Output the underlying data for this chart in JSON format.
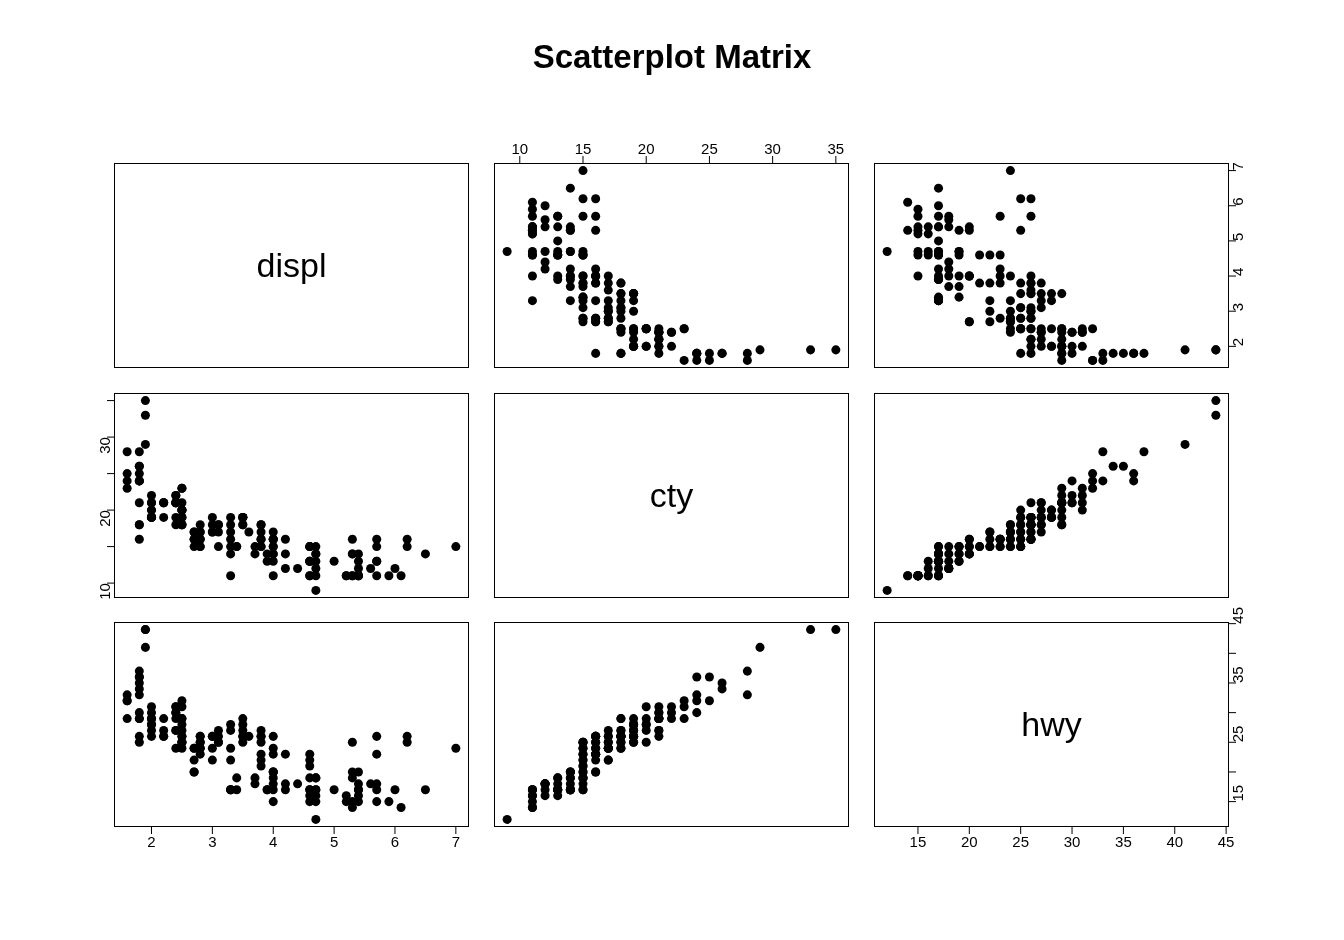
{
  "chart_data": [
    {
      "type": "other",
      "title": "Scatterplot Matrix"
    },
    {
      "type": "other",
      "title": "displ"
    },
    {
      "type": "scatter",
      "color": "#000000",
      "marker": "circle",
      "tick_labels": "x",
      "xlim": [
        7.96,
        36.04
      ],
      "xticks": [
        10,
        15,
        20,
        25,
        30,
        35
      ],
      "ylim": [
        1.384,
        7.216
      ],
      "x": [
        28,
        24,
        25,
        23,
        18,
        21,
        18,
        16,
        26,
        25,
        24,
        24,
        24,
        26,
        28,
        33,
        35,
        29,
        20,
        21,
        20,
        19,
        21,
        19,
        19,
        22,
        19,
        21,
        19,
        21,
        21,
        19,
        22,
        18,
        21,
        21,
        21,
        21,
        22,
        18,
        23,
        23,
        18,
        18,
        20,
        20,
        19,
        19,
        21,
        20,
        20,
        17,
        16,
        15,
        16,
        17,
        16,
        18,
        15,
        17,
        15,
        16,
        17,
        17,
        17,
        18,
        19,
        18,
        17,
        15,
        18,
        16,
        17,
        11,
        19,
        14,
        15,
        18,
        15,
        15,
        18,
        19,
        19,
        18,
        19,
        19,
        17,
        15,
        14,
        15,
        15,
        16,
        18,
        18,
        16,
        17,
        13,
        14,
        16,
        17,
        16,
        15,
        14,
        13,
        14,
        11,
        16,
        15,
        16,
        14,
        12,
        12,
        11,
        13,
        13,
        13,
        15,
        15,
        15,
        11,
        14,
        9,
        13,
        12,
        14,
        11,
        15,
        13,
        11,
        11,
        14,
        11,
        14,
        11,
        16,
        11,
        12,
        13,
        14,
        11,
        11,
        12,
        13,
        16,
        15,
        11,
        13,
        11,
        12,
        11,
        16,
        15,
        14,
        15
      ],
      "values": [
        1.6,
        1.6,
        1.6,
        1.6,
        1.8,
        1.8,
        1.8,
        1.8,
        1.8,
        1.8,
        1.8,
        1.8,
        1.8,
        1.8,
        1.8,
        1.9,
        1.9,
        1.9,
        2,
        2,
        2,
        2,
        2,
        2,
        2,
        2,
        2,
        2.2,
        2.2,
        2.2,
        2.2,
        2.4,
        2.4,
        2.4,
        2.4,
        2.4,
        2.4,
        2.4,
        2.4,
        2.5,
        2.5,
        2.5,
        2.5,
        2.5,
        2.5,
        2.5,
        2.5,
        2.5,
        2.5,
        2.5,
        2.5,
        2.7,
        2.7,
        2.7,
        2.7,
        2.7,
        2.8,
        2.8,
        2.8,
        2.8,
        2.8,
        2.8,
        2.8,
        3,
        3,
        3,
        3,
        3.1,
        3.1,
        3.1,
        3.1,
        3.3,
        3.3,
        3.3,
        3.3,
        3.3,
        3.3,
        3.3,
        3.4,
        3.4,
        3.5,
        3.5,
        3.5,
        3.5,
        3.5,
        3.5,
        3.6,
        3.7,
        3.7,
        3.8,
        3.8,
        3.8,
        3.8,
        3.8,
        3.8,
        3.8,
        3.9,
        3.9,
        4,
        4,
        4,
        4,
        4,
        4,
        4,
        4,
        4,
        4,
        4.2,
        4.2,
        4.2,
        4.4,
        4.6,
        4.6,
        4.6,
        4.6,
        4.6,
        4.6,
        4.6,
        4.6,
        4.7,
        4.7,
        4.7,
        4.7,
        4.7,
        4.7,
        4.7,
        5,
        5.2,
        5.2,
        5.3,
        5.3,
        5.3,
        5.3,
        5.3,
        5.4,
        5.4,
        5.4,
        5.4,
        5.4,
        5.4,
        5.6,
        5.7,
        5.7,
        5.7,
        5.7,
        5.7,
        5.9,
        6,
        6.1,
        6.2,
        6.2,
        6.5,
        7
      ]
    },
    {
      "type": "scatter",
      "color": "#000000",
      "marker": "circle",
      "tick_labels": "y",
      "xlim": [
        10.72,
        45.28
      ],
      "ylim": [
        1.384,
        7.216
      ],
      "yticks": [
        2,
        3,
        4,
        5,
        6,
        7
      ],
      "x": [
        33,
        32,
        32,
        29,
        29,
        29,
        26,
        25,
        34,
        36,
        36,
        30,
        33,
        35,
        37,
        44,
        44,
        41,
        31,
        30,
        28,
        27,
        29,
        26,
        29,
        29,
        28,
        26,
        26,
        29,
        27,
        27,
        30,
        24,
        27,
        31,
        30,
        29,
        31,
        26,
        31,
        32,
        25,
        24,
        27,
        25,
        26,
        25,
        29,
        28,
        29,
        24,
        24,
        20,
        20,
        22,
        26,
        26,
        25,
        25,
        24,
        23,
        24,
        24,
        22,
        26,
        26,
        27,
        25,
        25,
        26,
        22,
        24,
        17,
        28,
        17,
        17,
        27,
        19,
        17,
        29,
        27,
        26,
        26,
        25,
        28,
        26,
        19,
        18,
        22,
        21,
        23,
        26,
        25,
        26,
        27,
        17,
        17,
        23,
        26,
        24,
        20,
        17,
        19,
        20,
        15,
        20,
        18,
        23,
        17,
        18,
        18,
        17,
        19,
        16,
        17,
        21,
        22,
        23,
        15,
        19,
        12,
        17,
        16,
        17,
        15,
        19,
        17,
        15,
        16,
        20,
        15,
        19,
        14,
        25,
        17,
        18,
        17,
        20,
        15,
        16,
        18,
        17,
        26,
        23,
        15,
        18,
        15,
        17,
        14,
        26,
        25,
        17,
        24
      ],
      "values": [
        1.6,
        1.6,
        1.6,
        1.6,
        1.8,
        1.8,
        1.8,
        1.8,
        1.8,
        1.8,
        1.8,
        1.8,
        1.8,
        1.8,
        1.8,
        1.9,
        1.9,
        1.9,
        2,
        2,
        2,
        2,
        2,
        2,
        2,
        2,
        2,
        2.2,
        2.2,
        2.2,
        2.2,
        2.4,
        2.4,
        2.4,
        2.4,
        2.4,
        2.4,
        2.4,
        2.4,
        2.5,
        2.5,
        2.5,
        2.5,
        2.5,
        2.5,
        2.5,
        2.5,
        2.5,
        2.5,
        2.5,
        2.5,
        2.7,
        2.7,
        2.7,
        2.7,
        2.7,
        2.8,
        2.8,
        2.8,
        2.8,
        2.8,
        2.8,
        2.8,
        3,
        3,
        3,
        3,
        3.1,
        3.1,
        3.1,
        3.1,
        3.3,
        3.3,
        3.3,
        3.3,
        3.3,
        3.3,
        3.3,
        3.4,
        3.4,
        3.5,
        3.5,
        3.5,
        3.5,
        3.5,
        3.5,
        3.6,
        3.7,
        3.7,
        3.8,
        3.8,
        3.8,
        3.8,
        3.8,
        3.8,
        3.8,
        3.9,
        3.9,
        4,
        4,
        4,
        4,
        4,
        4,
        4,
        4,
        4,
        4,
        4.2,
        4.2,
        4.2,
        4.4,
        4.6,
        4.6,
        4.6,
        4.6,
        4.6,
        4.6,
        4.6,
        4.6,
        4.7,
        4.7,
        4.7,
        4.7,
        4.7,
        4.7,
        4.7,
        5,
        5.2,
        5.2,
        5.3,
        5.3,
        5.3,
        5.3,
        5.3,
        5.4,
        5.4,
        5.4,
        5.4,
        5.4,
        5.4,
        5.6,
        5.7,
        5.7,
        5.7,
        5.7,
        5.7,
        5.9,
        6,
        6.1,
        6.2,
        6.2,
        6.5,
        7
      ]
    },
    {
      "type": "scatter",
      "color": "#000000",
      "marker": "circle",
      "tick_labels": "y",
      "xlim": [
        1.384,
        7.216
      ],
      "ylim": [
        7.96,
        36.04
      ],
      "yticks": [
        10,
        {
          "value": 15,
          "label": null
        },
        20,
        {
          "value": 25,
          "label": null
        },
        30,
        {
          "value": 35,
          "label": null
        }
      ],
      "x": [
        1.6,
        1.6,
        1.6,
        1.6,
        1.8,
        1.8,
        1.8,
        1.8,
        1.8,
        1.8,
        1.8,
        1.8,
        1.8,
        1.8,
        1.8,
        1.9,
        1.9,
        1.9,
        2,
        2,
        2,
        2,
        2,
        2,
        2,
        2,
        2,
        2.2,
        2.2,
        2.2,
        2.2,
        2.4,
        2.4,
        2.4,
        2.4,
        2.4,
        2.4,
        2.4,
        2.4,
        2.5,
        2.5,
        2.5,
        2.5,
        2.5,
        2.5,
        2.5,
        2.5,
        2.5,
        2.5,
        2.5,
        2.5,
        2.7,
        2.7,
        2.7,
        2.7,
        2.7,
        2.8,
        2.8,
        2.8,
        2.8,
        2.8,
        2.8,
        2.8,
        3,
        3,
        3,
        3,
        3.1,
        3.1,
        3.1,
        3.1,
        3.3,
        3.3,
        3.3,
        3.3,
        3.3,
        3.3,
        3.3,
        3.4,
        3.4,
        3.5,
        3.5,
        3.5,
        3.5,
        3.5,
        3.5,
        3.6,
        3.7,
        3.7,
        3.8,
        3.8,
        3.8,
        3.8,
        3.8,
        3.8,
        3.8,
        3.9,
        3.9,
        4,
        4,
        4,
        4,
        4,
        4,
        4,
        4,
        4,
        4,
        4.2,
        4.2,
        4.2,
        4.4,
        4.6,
        4.6,
        4.6,
        4.6,
        4.6,
        4.6,
        4.6,
        4.6,
        4.7,
        4.7,
        4.7,
        4.7,
        4.7,
        4.7,
        4.7,
        5,
        5.2,
        5.2,
        5.3,
        5.3,
        5.3,
        5.3,
        5.3,
        5.4,
        5.4,
        5.4,
        5.4,
        5.4,
        5.4,
        5.6,
        5.7,
        5.7,
        5.7,
        5.7,
        5.7,
        5.9,
        6,
        6.1,
        6.2,
        6.2,
        6.5,
        7
      ],
      "values": [
        28,
        24,
        25,
        23,
        18,
        21,
        18,
        16,
        26,
        25,
        24,
        24,
        24,
        26,
        28,
        33,
        35,
        29,
        20,
        21,
        20,
        19,
        21,
        19,
        19,
        22,
        19,
        21,
        19,
        21,
        21,
        19,
        22,
        18,
        21,
        21,
        21,
        21,
        22,
        18,
        23,
        23,
        18,
        18,
        20,
        20,
        19,
        19,
        21,
        20,
        20,
        17,
        16,
        15,
        16,
        17,
        16,
        18,
        15,
        17,
        15,
        16,
        17,
        17,
        17,
        18,
        19,
        18,
        17,
        15,
        18,
        16,
        17,
        11,
        19,
        14,
        15,
        18,
        15,
        15,
        18,
        19,
        19,
        18,
        19,
        19,
        17,
        15,
        14,
        15,
        15,
        16,
        18,
        18,
        16,
        17,
        13,
        14,
        16,
        17,
        16,
        15,
        14,
        13,
        14,
        11,
        16,
        15,
        16,
        14,
        12,
        12,
        11,
        13,
        13,
        13,
        15,
        15,
        15,
        11,
        14,
        9,
        13,
        12,
        14,
        11,
        15,
        13,
        11,
        11,
        14,
        11,
        14,
        11,
        16,
        11,
        12,
        13,
        14,
        11,
        11,
        12,
        13,
        16,
        15,
        11,
        13,
        11,
        12,
        11,
        16,
        15,
        14,
        15
      ]
    },
    {
      "type": "other",
      "title": "cty"
    },
    {
      "type": "scatter",
      "color": "#000000",
      "marker": "circle",
      "tick_labels": false,
      "xlim": [
        10.72,
        45.28
      ],
      "ylim": [
        7.96,
        36.04
      ],
      "x": [
        33,
        32,
        32,
        29,
        29,
        29,
        26,
        25,
        34,
        36,
        36,
        30,
        33,
        35,
        37,
        44,
        44,
        41,
        31,
        30,
        28,
        27,
        29,
        26,
        29,
        29,
        28,
        26,
        26,
        29,
        27,
        27,
        30,
        24,
        27,
        31,
        30,
        29,
        31,
        26,
        31,
        32,
        25,
        24,
        27,
        25,
        26,
        25,
        29,
        28,
        29,
        24,
        24,
        20,
        20,
        22,
        26,
        26,
        25,
        25,
        24,
        23,
        24,
        24,
        22,
        26,
        26,
        27,
        25,
        25,
        26,
        22,
        24,
        17,
        28,
        17,
        17,
        27,
        19,
        17,
        29,
        27,
        26,
        26,
        25,
        28,
        26,
        19,
        18,
        22,
        21,
        23,
        26,
        25,
        26,
        27,
        17,
        17,
        23,
        26,
        24,
        20,
        17,
        19,
        20,
        15,
        20,
        18,
        23,
        17,
        18,
        18,
        17,
        19,
        16,
        17,
        21,
        22,
        23,
        15,
        19,
        12,
        17,
        16,
        17,
        15,
        19,
        17,
        15,
        16,
        20,
        15,
        19,
        14,
        25,
        17,
        18,
        17,
        20,
        15,
        16,
        18,
        17,
        26,
        23,
        15,
        18,
        15,
        17,
        14,
        26,
        25,
        17,
        24
      ],
      "values": [
        28,
        24,
        25,
        23,
        18,
        21,
        18,
        16,
        26,
        25,
        24,
        24,
        24,
        26,
        28,
        33,
        35,
        29,
        20,
        21,
        20,
        19,
        21,
        19,
        19,
        22,
        19,
        21,
        19,
        21,
        21,
        19,
        22,
        18,
        21,
        21,
        21,
        21,
        22,
        18,
        23,
        23,
        18,
        18,
        20,
        20,
        19,
        19,
        21,
        20,
        20,
        17,
        16,
        15,
        16,
        17,
        16,
        18,
        15,
        17,
        15,
        16,
        17,
        17,
        17,
        18,
        19,
        18,
        17,
        15,
        18,
        16,
        17,
        11,
        19,
        14,
        15,
        18,
        15,
        15,
        18,
        19,
        19,
        18,
        19,
        19,
        17,
        15,
        14,
        15,
        15,
        16,
        18,
        18,
        16,
        17,
        13,
        14,
        16,
        17,
        16,
        15,
        14,
        13,
        14,
        11,
        16,
        15,
        16,
        14,
        12,
        12,
        11,
        13,
        13,
        13,
        15,
        15,
        15,
        11,
        14,
        9,
        13,
        12,
        14,
        11,
        15,
        13,
        11,
        11,
        14,
        11,
        14,
        11,
        16,
        11,
        12,
        13,
        14,
        11,
        11,
        12,
        13,
        16,
        15,
        11,
        13,
        11,
        12,
        11,
        16,
        15,
        14,
        15
      ]
    },
    {
      "type": "scatter",
      "color": "#000000",
      "marker": "circle",
      "tick_labels": "x",
      "xlim": [
        1.384,
        7.216
      ],
      "xticks": [
        2,
        3,
        4,
        5,
        6,
        7
      ],
      "ylim": [
        10.72,
        45.28
      ],
      "x": [
        1.6,
        1.6,
        1.6,
        1.6,
        1.8,
        1.8,
        1.8,
        1.8,
        1.8,
        1.8,
        1.8,
        1.8,
        1.8,
        1.8,
        1.8,
        1.9,
        1.9,
        1.9,
        2,
        2,
        2,
        2,
        2,
        2,
        2,
        2,
        2,
        2.2,
        2.2,
        2.2,
        2.2,
        2.4,
        2.4,
        2.4,
        2.4,
        2.4,
        2.4,
        2.4,
        2.4,
        2.5,
        2.5,
        2.5,
        2.5,
        2.5,
        2.5,
        2.5,
        2.5,
        2.5,
        2.5,
        2.5,
        2.5,
        2.7,
        2.7,
        2.7,
        2.7,
        2.7,
        2.8,
        2.8,
        2.8,
        2.8,
        2.8,
        2.8,
        2.8,
        3,
        3,
        3,
        3,
        3.1,
        3.1,
        3.1,
        3.1,
        3.3,
        3.3,
        3.3,
        3.3,
        3.3,
        3.3,
        3.3,
        3.4,
        3.4,
        3.5,
        3.5,
        3.5,
        3.5,
        3.5,
        3.5,
        3.6,
        3.7,
        3.7,
        3.8,
        3.8,
        3.8,
        3.8,
        3.8,
        3.8,
        3.8,
        3.9,
        3.9,
        4,
        4,
        4,
        4,
        4,
        4,
        4,
        4,
        4,
        4,
        4.2,
        4.2,
        4.2,
        4.4,
        4.6,
        4.6,
        4.6,
        4.6,
        4.6,
        4.6,
        4.6,
        4.6,
        4.7,
        4.7,
        4.7,
        4.7,
        4.7,
        4.7,
        4.7,
        5,
        5.2,
        5.2,
        5.3,
        5.3,
        5.3,
        5.3,
        5.3,
        5.4,
        5.4,
        5.4,
        5.4,
        5.4,
        5.4,
        5.6,
        5.7,
        5.7,
        5.7,
        5.7,
        5.7,
        5.9,
        6,
        6.1,
        6.2,
        6.2,
        6.5,
        7
      ],
      "values": [
        33,
        32,
        32,
        29,
        29,
        29,
        26,
        25,
        34,
        36,
        36,
        30,
        33,
        35,
        37,
        44,
        44,
        41,
        31,
        30,
        28,
        27,
        29,
        26,
        29,
        29,
        28,
        26,
        26,
        29,
        27,
        27,
        30,
        24,
        27,
        31,
        30,
        29,
        31,
        26,
        31,
        32,
        25,
        24,
        27,
        25,
        26,
        25,
        29,
        28,
        29,
        24,
        24,
        20,
        20,
        22,
        26,
        26,
        25,
        25,
        24,
        23,
        24,
        24,
        22,
        26,
        26,
        27,
        25,
        25,
        26,
        22,
        24,
        17,
        28,
        17,
        17,
        27,
        19,
        17,
        29,
        27,
        26,
        26,
        25,
        28,
        26,
        19,
        18,
        22,
        21,
        23,
        26,
        25,
        26,
        27,
        17,
        17,
        23,
        26,
        24,
        20,
        17,
        19,
        20,
        15,
        20,
        18,
        23,
        17,
        18,
        18,
        17,
        19,
        16,
        17,
        21,
        22,
        23,
        15,
        19,
        12,
        17,
        16,
        17,
        15,
        19,
        17,
        15,
        16,
        20,
        15,
        19,
        14,
        25,
        17,
        18,
        17,
        20,
        15,
        16,
        18,
        17,
        26,
        23,
        15,
        18,
        15,
        17,
        14,
        26,
        25,
        17,
        24
      ]
    },
    {
      "type": "scatter",
      "color": "#000000",
      "marker": "circle",
      "tick_labels": false,
      "xlim": [
        7.96,
        36.04
      ],
      "ylim": [
        10.72,
        45.28
      ],
      "x": [
        28,
        24,
        25,
        23,
        18,
        21,
        18,
        16,
        26,
        25,
        24,
        24,
        24,
        26,
        28,
        33,
        35,
        29,
        20,
        21,
        20,
        19,
        21,
        19,
        19,
        22,
        19,
        21,
        19,
        21,
        21,
        19,
        22,
        18,
        21,
        21,
        21,
        21,
        22,
        18,
        23,
        23,
        18,
        18,
        20,
        20,
        19,
        19,
        21,
        20,
        20,
        17,
        16,
        15,
        16,
        17,
        16,
        18,
        15,
        17,
        15,
        16,
        17,
        17,
        17,
        18,
        19,
        18,
        17,
        15,
        18,
        16,
        17,
        11,
        19,
        14,
        15,
        18,
        15,
        15,
        18,
        19,
        19,
        18,
        19,
        19,
        17,
        15,
        14,
        15,
        15,
        16,
        18,
        18,
        16,
        17,
        13,
        14,
        16,
        17,
        16,
        15,
        14,
        13,
        14,
        16,
        15,
        16,
        14,
        12,
        12,
        11,
        13,
        13,
        13,
        15,
        15,
        15,
        14,
        9,
        13,
        12,
        14,
        15,
        13,
        11,
        14,
        14,
        11,
        16,
        11,
        12,
        13,
        14,
        11,
        12,
        13,
        16,
        15,
        13,
        11,
        12,
        11,
        16,
        15,
        14,
        15
      ],
      "values": [
        33,
        32,
        32,
        29,
        29,
        29,
        26,
        25,
        34,
        36,
        36,
        30,
        33,
        35,
        37,
        44,
        44,
        41,
        31,
        30,
        28,
        27,
        29,
        26,
        29,
        29,
        28,
        26,
        26,
        29,
        27,
        27,
        30,
        24,
        27,
        31,
        30,
        29,
        31,
        26,
        31,
        32,
        25,
        24,
        27,
        25,
        26,
        25,
        29,
        28,
        29,
        24,
        24,
        20,
        20,
        22,
        26,
        26,
        25,
        25,
        24,
        23,
        24,
        24,
        22,
        26,
        26,
        27,
        25,
        25,
        26,
        22,
        24,
        17,
        28,
        17,
        17,
        27,
        19,
        17,
        29,
        27,
        26,
        26,
        25,
        28,
        26,
        19,
        18,
        22,
        21,
        23,
        26,
        25,
        26,
        27,
        17,
        17,
        23,
        26,
        24,
        20,
        17,
        19,
        20,
        20,
        18,
        23,
        17,
        18,
        18,
        17,
        19,
        16,
        17,
        21,
        22,
        23,
        19,
        12,
        17,
        16,
        17,
        19,
        17,
        16,
        20,
        19,
        14,
        25,
        17,
        18,
        17,
        20,
        16,
        18,
        17,
        26,
        23,
        18,
        15,
        17,
        14,
        26,
        25,
        17,
        24
      ]
    },
    {
      "type": "scatter",
      "title": "hwy",
      "color": "#000000",
      "marker": "circle",
      "xlim": [
        10.72,
        45.28
      ],
      "xticks": [
        15,
        20,
        25,
        30,
        35,
        40,
        45
      ],
      "ylim": [
        10.72,
        45.28
      ],
      "yticks": [
        15,
        {
          "value": 20,
          "label": null
        },
        25,
        {
          "value": 30,
          "label": null
        },
        35,
        {
          "value": 40,
          "label": null
        },
        45
      ]
    }
  ]
}
